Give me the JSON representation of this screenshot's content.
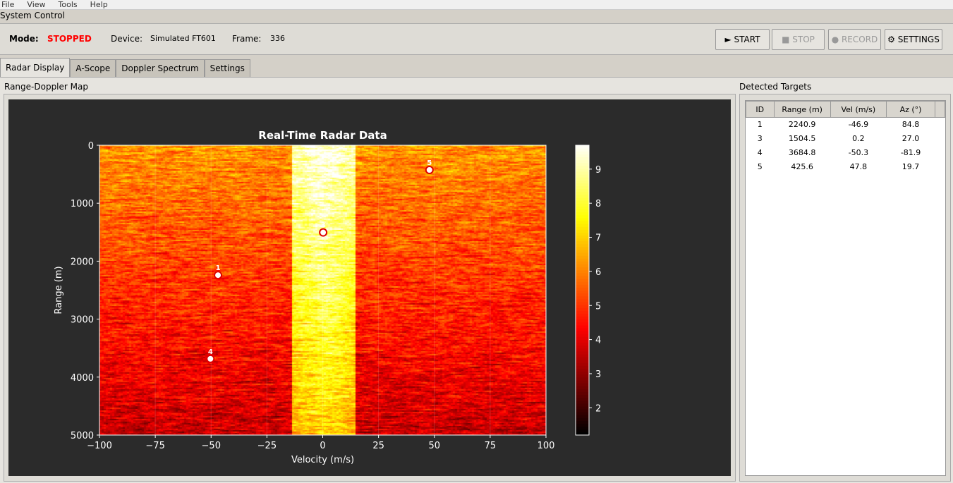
{
  "menu": [
    "File",
    "View",
    "Tools",
    "Help"
  ],
  "group_title": "System Control",
  "status": {
    "mode_label": "Mode:",
    "mode_value": "STOPPED",
    "device_label": "Device:",
    "device_value": "Simulated FT601",
    "frame_label": "Frame:",
    "frame_value": "336",
    "mode_color": "#ff0000"
  },
  "buttons": {
    "start": "► START",
    "stop": "■ STOP",
    "record": "● RECORD",
    "settings": "⚙ SETTINGS"
  },
  "tabs": [
    "Radar Display",
    "A-Scope",
    "Doppler Spectrum",
    "Settings"
  ],
  "map_label": "Range-Doppler Map",
  "targets_label": "Detected Targets",
  "table": {
    "headers": [
      "ID",
      "Range (m)",
      "Vel (m/s)",
      "Az (°)"
    ],
    "rows": [
      [
        "1",
        "2240.9",
        "-46.9",
        "84.8"
      ],
      [
        "3",
        "1504.5",
        "0.2",
        "27.0"
      ],
      [
        "4",
        "3684.8",
        "-50.3",
        "-81.9"
      ],
      [
        "5",
        "425.6",
        "47.8",
        "19.7"
      ]
    ]
  },
  "chart_data": {
    "type": "heatmap",
    "title": "Real-Time Radar Data",
    "xlabel": "Velocity (m/s)",
    "ylabel": "Range (m)",
    "xlim": [
      -100,
      100
    ],
    "ylim": [
      5000,
      0
    ],
    "xticks": [
      "−100",
      "−75",
      "−50",
      "−25",
      "0",
      "25",
      "50",
      "75",
      "100"
    ],
    "yticks": [
      "0",
      "1000",
      "2000",
      "3000",
      "4000",
      "5000"
    ],
    "colorbar": {
      "range": [
        1.2,
        9.7
      ],
      "ticks": [
        "2",
        "3",
        "4",
        "5",
        "6",
        "7",
        "8",
        "9"
      ],
      "colormap": "hot"
    },
    "targets": [
      {
        "id": "1",
        "velocity": -46.9,
        "range": 2240.9
      },
      {
        "id": "3",
        "velocity": 0.2,
        "range": 1504.5
      },
      {
        "id": "4",
        "velocity": -50.3,
        "range": 3684.8
      },
      {
        "id": "5",
        "velocity": 47.8,
        "range": 425.6
      }
    ]
  }
}
